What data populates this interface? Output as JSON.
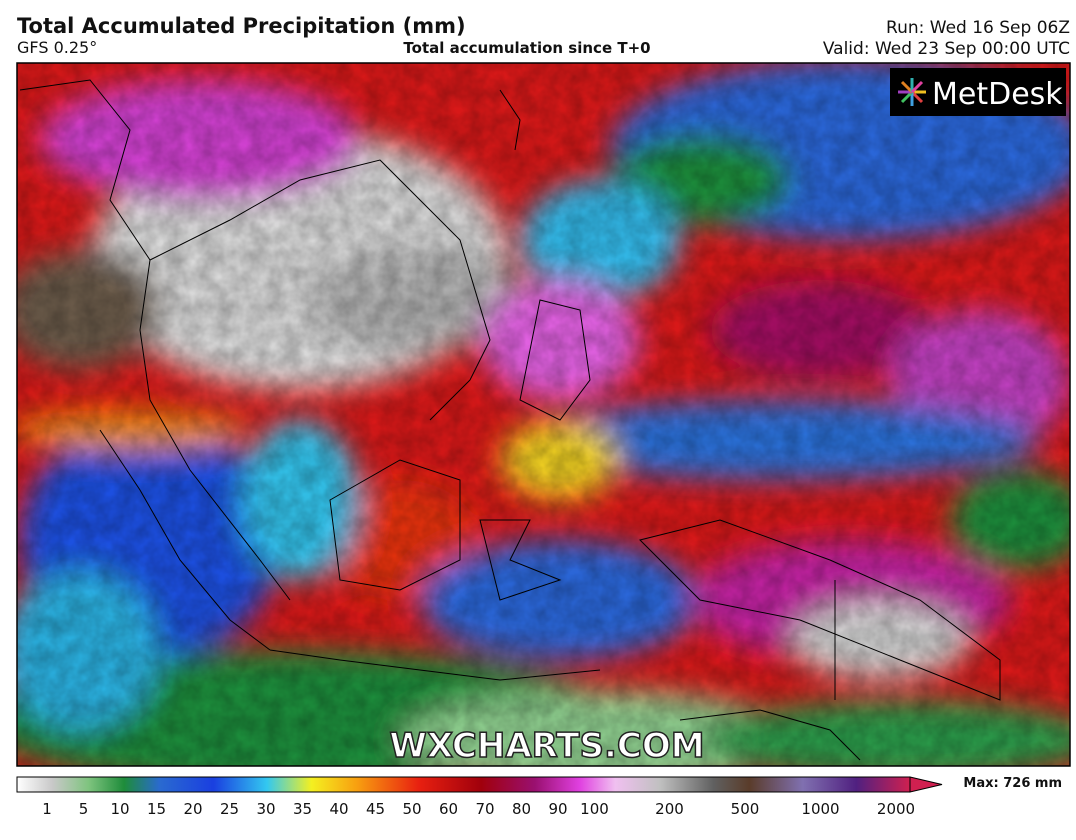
{
  "header": {
    "title": "Total Accumulated Precipitation (mm)",
    "model": "GFS 0.25°",
    "subtitle": "Total accumulation since T+0",
    "run": "Run: Wed 16 Sep 06Z",
    "valid": "Valid: Wed 23 Sep 00:00 UTC"
  },
  "logo": "MetDesk",
  "watermark": "WXCHARTS.COM",
  "legend": {
    "labels": [
      "1",
      "5",
      "10",
      "15",
      "20",
      "25",
      "30",
      "35",
      "40",
      "45",
      "50",
      "60",
      "70",
      "80",
      "90",
      "100",
      "200",
      "500",
      "1000",
      "2000"
    ],
    "max": "Max: 726 mm"
  }
}
